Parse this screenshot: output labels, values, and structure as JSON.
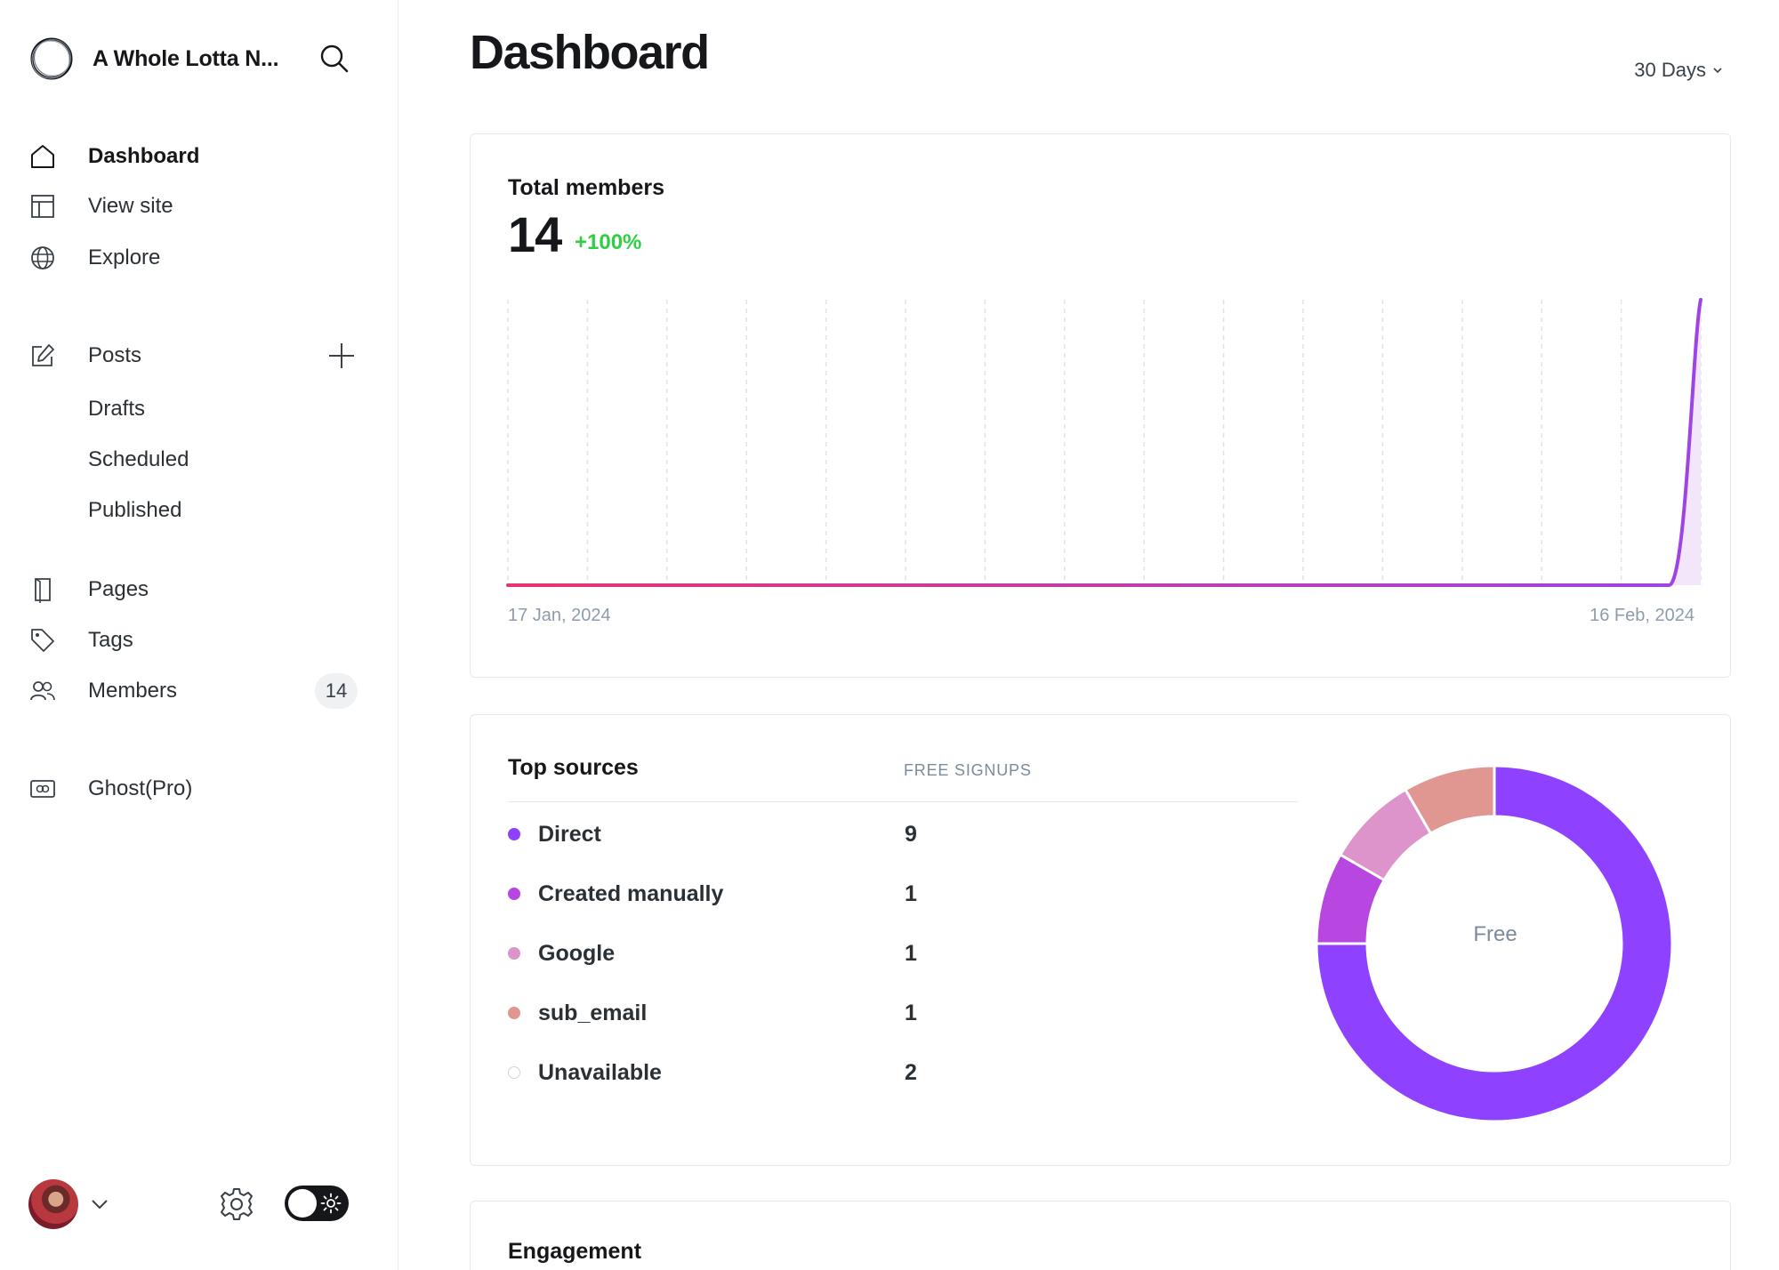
{
  "site": {
    "title": "A Whole Lotta N..."
  },
  "nav": {
    "dashboard": "Dashboard",
    "view_site": "View site",
    "explore": "Explore",
    "posts": "Posts",
    "drafts": "Drafts",
    "scheduled": "Scheduled",
    "published": "Published",
    "pages": "Pages",
    "tags": "Tags",
    "members": "Members",
    "members_count": "14",
    "ghost_pro": "Ghost(Pro)"
  },
  "header": {
    "title": "Dashboard",
    "range": "30 Days"
  },
  "members_card": {
    "label": "Total members",
    "value": "14",
    "change": "+100%",
    "start_date": "17 Jan, 2024",
    "end_date": "16 Feb, 2024"
  },
  "chart_data": {
    "type": "area",
    "x": [
      "17 Jan, 2024",
      "16 Feb, 2024"
    ],
    "daily_values": [
      0,
      0,
      0,
      0,
      0,
      0,
      0,
      0,
      0,
      0,
      0,
      0,
      0,
      0,
      0,
      0,
      0,
      0,
      0,
      0,
      0,
      0,
      0,
      0,
      0,
      0,
      0,
      0,
      0,
      0,
      14
    ],
    "ylim": [
      0,
      14
    ],
    "grid": "vertical-dashed",
    "line_gradient": [
      "#e8346d",
      "#9d44e6"
    ],
    "fill_color": "#f3e6fb"
  },
  "sources_card": {
    "label": "Top sources",
    "column_header": "FREE SIGNUPS",
    "rows": [
      {
        "name": "Direct",
        "value": "9",
        "color": "#8e42ff"
      },
      {
        "name": "Created manually",
        "value": "1",
        "color": "#b847e2"
      },
      {
        "name": "Google",
        "value": "1",
        "color": "#dd94cb"
      },
      {
        "name": "sub_email",
        "value": "1",
        "color": "#e09791"
      },
      {
        "name": "Unavailable",
        "value": "2",
        "color": "#ffffff"
      }
    ],
    "donut_center": "Free"
  },
  "engagement_card": {
    "label": "Engagement"
  },
  "icons": {
    "logo": "ghost-ring-logo",
    "search": "search-icon",
    "home": "home-icon",
    "view_site": "layout-icon",
    "explore": "globe-icon",
    "posts": "pencil-square-icon",
    "plus": "plus-icon",
    "pages": "page-icon",
    "tags": "tag-icon",
    "members": "people-icon",
    "ghost_pro": "ghost-pro-icon",
    "settings": "gear-icon",
    "theme": "sun-icon"
  }
}
